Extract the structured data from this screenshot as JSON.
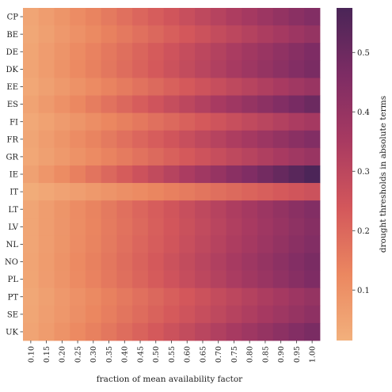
{
  "chart_data": {
    "type": "heatmap",
    "title": "",
    "xlabel": "fraction of mean availability factor",
    "ylabel": "",
    "colorbar_label": "drought thresholds in absolute terms",
    "colorbar_ticks": [
      0.1,
      0.2,
      0.3,
      0.4,
      0.5
    ],
    "colorbar_range": [
      0.015,
      0.575
    ],
    "colormap": [
      "#f2b07c",
      "#eb8760",
      "#d3575b",
      "#a83a61",
      "#7d2c64",
      "#4a2557"
    ],
    "x": [
      "0.10",
      "0.15",
      "0.20",
      "0.25",
      "0.30",
      "0.35",
      "0.40",
      "0.45",
      "0.50",
      "0.55",
      "0.60",
      "0.65",
      "0.70",
      "0.75",
      "0.80",
      "0.85",
      "0.90",
      "0.95",
      "1.00"
    ],
    "y": [
      "CP",
      "BE",
      "DE",
      "DK",
      "EE",
      "ES",
      "FI",
      "FR",
      "GR",
      "IE",
      "IT",
      "LT",
      "LV",
      "NL",
      "NO",
      "PL",
      "PT",
      "SE",
      "UK"
    ],
    "values": [
      [
        0.045,
        0.068,
        0.09,
        0.113,
        0.135,
        0.158,
        0.18,
        0.203,
        0.225,
        0.248,
        0.27,
        0.293,
        0.315,
        0.338,
        0.36,
        0.383,
        0.405,
        0.428,
        0.45
      ],
      [
        0.04,
        0.06,
        0.08,
        0.1,
        0.12,
        0.14,
        0.16,
        0.18,
        0.2,
        0.22,
        0.24,
        0.26,
        0.28,
        0.3,
        0.32,
        0.34,
        0.36,
        0.38,
        0.4
      ],
      [
        0.046,
        0.069,
        0.092,
        0.115,
        0.138,
        0.161,
        0.184,
        0.207,
        0.23,
        0.253,
        0.276,
        0.299,
        0.322,
        0.345,
        0.368,
        0.391,
        0.414,
        0.437,
        0.46
      ],
      [
        0.047,
        0.071,
        0.094,
        0.118,
        0.141,
        0.165,
        0.188,
        0.212,
        0.235,
        0.259,
        0.282,
        0.306,
        0.329,
        0.353,
        0.376,
        0.4,
        0.423,
        0.447,
        0.47
      ],
      [
        0.039,
        0.059,
        0.078,
        0.098,
        0.117,
        0.137,
        0.156,
        0.176,
        0.195,
        0.215,
        0.234,
        0.254,
        0.273,
        0.293,
        0.312,
        0.332,
        0.351,
        0.371,
        0.39
      ],
      [
        0.05,
        0.075,
        0.1,
        0.125,
        0.15,
        0.175,
        0.2,
        0.225,
        0.25,
        0.275,
        0.3,
        0.325,
        0.35,
        0.375,
        0.4,
        0.425,
        0.45,
        0.475,
        0.5
      ],
      [
        0.036,
        0.054,
        0.072,
        0.09,
        0.108,
        0.126,
        0.144,
        0.162,
        0.18,
        0.198,
        0.216,
        0.234,
        0.252,
        0.27,
        0.288,
        0.306,
        0.324,
        0.342,
        0.36
      ],
      [
        0.045,
        0.068,
        0.09,
        0.113,
        0.135,
        0.158,
        0.18,
        0.203,
        0.225,
        0.248,
        0.27,
        0.293,
        0.315,
        0.338,
        0.36,
        0.383,
        0.405,
        0.428,
        0.45
      ],
      [
        0.039,
        0.059,
        0.078,
        0.098,
        0.117,
        0.137,
        0.156,
        0.176,
        0.195,
        0.215,
        0.234,
        0.254,
        0.273,
        0.293,
        0.312,
        0.332,
        0.351,
        0.371,
        0.39
      ],
      [
        0.057,
        0.086,
        0.114,
        0.143,
        0.171,
        0.2,
        0.228,
        0.257,
        0.285,
        0.314,
        0.342,
        0.371,
        0.399,
        0.428,
        0.456,
        0.485,
        0.513,
        0.542,
        0.57
      ],
      [
        0.026,
        0.039,
        0.052,
        0.065,
        0.078,
        0.091,
        0.104,
        0.117,
        0.13,
        0.143,
        0.156,
        0.169,
        0.182,
        0.195,
        0.208,
        0.221,
        0.234,
        0.247,
        0.26
      ],
      [
        0.045,
        0.068,
        0.09,
        0.113,
        0.135,
        0.158,
        0.18,
        0.203,
        0.225,
        0.248,
        0.27,
        0.293,
        0.315,
        0.338,
        0.36,
        0.383,
        0.405,
        0.428,
        0.45
      ],
      [
        0.044,
        0.066,
        0.088,
        0.11,
        0.132,
        0.154,
        0.176,
        0.198,
        0.22,
        0.242,
        0.264,
        0.286,
        0.308,
        0.33,
        0.352,
        0.374,
        0.396,
        0.418,
        0.44
      ],
      [
        0.045,
        0.068,
        0.09,
        0.113,
        0.135,
        0.158,
        0.18,
        0.203,
        0.225,
        0.248,
        0.27,
        0.293,
        0.315,
        0.338,
        0.36,
        0.383,
        0.405,
        0.428,
        0.45
      ],
      [
        0.047,
        0.071,
        0.094,
        0.118,
        0.141,
        0.165,
        0.188,
        0.212,
        0.235,
        0.259,
        0.282,
        0.306,
        0.329,
        0.353,
        0.376,
        0.4,
        0.423,
        0.447,
        0.47
      ],
      [
        0.046,
        0.069,
        0.092,
        0.115,
        0.138,
        0.161,
        0.184,
        0.207,
        0.23,
        0.253,
        0.276,
        0.299,
        0.322,
        0.345,
        0.368,
        0.391,
        0.414,
        0.437,
        0.46
      ],
      [
        0.04,
        0.06,
        0.08,
        0.1,
        0.12,
        0.14,
        0.16,
        0.18,
        0.2,
        0.22,
        0.24,
        0.26,
        0.28,
        0.3,
        0.32,
        0.34,
        0.36,
        0.38,
        0.4
      ],
      [
        0.042,
        0.063,
        0.084,
        0.105,
        0.126,
        0.147,
        0.168,
        0.189,
        0.21,
        0.231,
        0.252,
        0.273,
        0.294,
        0.315,
        0.336,
        0.357,
        0.378,
        0.399,
        0.42
      ],
      [
        0.047,
        0.071,
        0.094,
        0.118,
        0.141,
        0.165,
        0.188,
        0.212,
        0.235,
        0.259,
        0.282,
        0.306,
        0.329,
        0.353,
        0.376,
        0.4,
        0.423,
        0.447,
        0.47
      ]
    ]
  }
}
